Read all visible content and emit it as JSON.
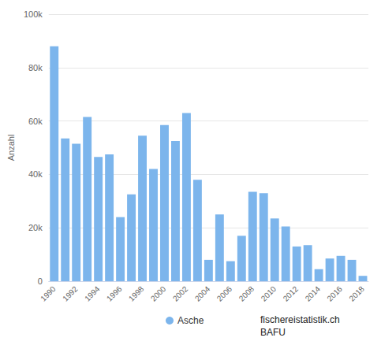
{
  "chart_data": {
    "type": "bar",
    "y_label": "Anzahl",
    "categories": [
      "1990",
      null,
      "1992",
      null,
      "1994",
      null,
      "1996",
      null,
      "1998",
      null,
      "2000",
      null,
      "2002",
      null,
      "2004",
      null,
      "2006",
      null,
      "2008",
      null,
      "2010",
      null,
      "2012",
      null,
      "2014",
      null,
      "2016",
      null,
      "2018"
    ],
    "series": [
      {
        "name": "Asche",
        "color": "#7cb5ec",
        "values": [
          88000,
          53500,
          51500,
          61500,
          46500,
          47500,
          24000,
          32500,
          54500,
          42000,
          58500,
          52500,
          63000,
          38000,
          8000,
          25000,
          7500,
          17000,
          33500,
          33000,
          23500,
          20500,
          13000,
          13500,
          4500,
          8500,
          9500,
          8000,
          2000
        ]
      }
    ],
    "ylim": [
      0,
      100000
    ],
    "yticks": [
      0,
      {
        "value": 20000,
        "label": "20k"
      },
      {
        "value": 40000,
        "label": "40k"
      },
      {
        "value": 60000,
        "label": "60k"
      },
      {
        "value": 80000,
        "label": "80k"
      },
      {
        "value": 100000,
        "label": "100k"
      }
    ],
    "grid": true,
    "legend": "bottom",
    "source": [
      "fischereistatistik.ch",
      "BAFU"
    ]
  }
}
